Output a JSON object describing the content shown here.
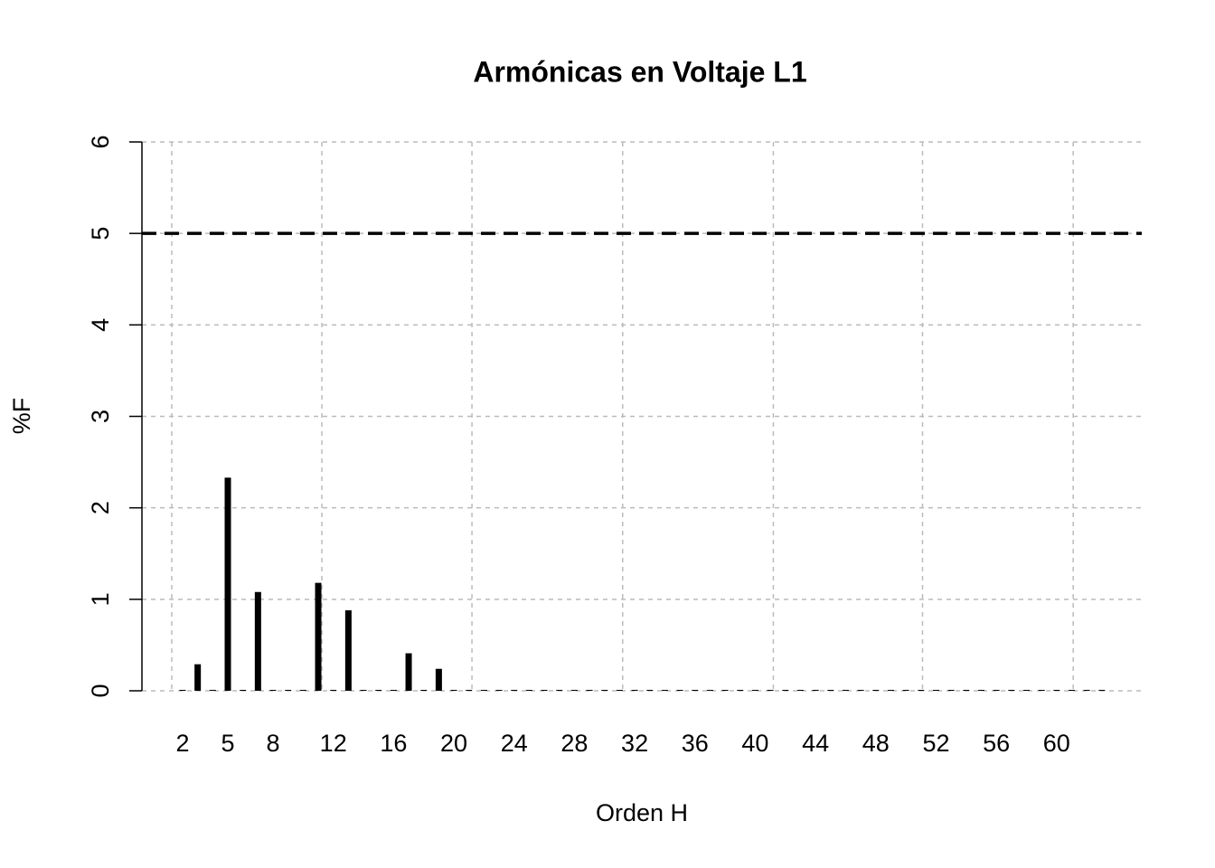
{
  "chart_data": {
    "type": "bar",
    "title": "Armónicas en Voltaje L1",
    "xlabel": "Orden H",
    "ylabel": "%F",
    "x": [
      2,
      3,
      4,
      5,
      6,
      7,
      8,
      9,
      10,
      11,
      12,
      13,
      14,
      15,
      16,
      17,
      18,
      19,
      20,
      21,
      22,
      23,
      24,
      25,
      26,
      27,
      28,
      29,
      30,
      31,
      32,
      33,
      34,
      35,
      36,
      37,
      38,
      39,
      40,
      41,
      42,
      43,
      44,
      45,
      46,
      47,
      48,
      49,
      50,
      51,
      52,
      53,
      54,
      55,
      56,
      57,
      58,
      59,
      60,
      61,
      62,
      63
    ],
    "values": [
      0.01,
      0.29,
      0.01,
      2.33,
      0.01,
      1.08,
      0.01,
      0.01,
      0.01,
      1.18,
      0.01,
      0.88,
      0.01,
      0.01,
      0.01,
      0.41,
      0.01,
      0.24,
      0.01,
      0.01,
      0.01,
      0.01,
      0.01,
      0.01,
      0.01,
      0.01,
      0.01,
      0.01,
      0.01,
      0.01,
      0.01,
      0.01,
      0.01,
      0.01,
      0.01,
      0.01,
      0.01,
      0.01,
      0.01,
      0.01,
      0.01,
      0.01,
      0.01,
      0.01,
      0.01,
      0.01,
      0.01,
      0.01,
      0.01,
      0.01,
      0.01,
      0.01,
      0.01,
      0.01,
      0.01,
      0.01,
      0.01,
      0.01,
      0.01,
      0.01,
      0.01,
      0.01
    ],
    "color": "#000000",
    "xlim": [
      -0.7,
      65.65
    ],
    "xticks": [
      2,
      5,
      8,
      12,
      16,
      20,
      24,
      28,
      32,
      36,
      40,
      44,
      48,
      52,
      56,
      60
    ],
    "xgrid": [
      1.28,
      11.24,
      21.2,
      31.2,
      41.2,
      51.1,
      61.1
    ],
    "ylim": [
      0,
      6
    ],
    "yticks": [
      0,
      1,
      2,
      3,
      4,
      5,
      6
    ],
    "grid": true,
    "hline": 5
  }
}
